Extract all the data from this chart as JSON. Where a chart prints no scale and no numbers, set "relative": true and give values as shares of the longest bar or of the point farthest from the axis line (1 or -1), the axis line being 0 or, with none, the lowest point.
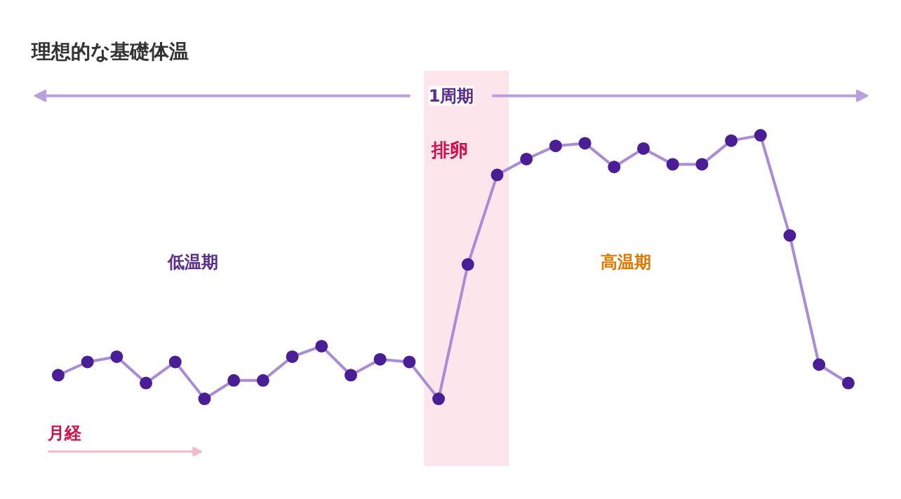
{
  "chart_data": {
    "type": "line",
    "title": "理想的な基礎体温",
    "relative": true,
    "marker": "circle",
    "line_style": "solid",
    "categories": [
      null,
      null,
      null,
      null,
      null,
      null,
      null,
      null,
      null,
      null,
      null,
      null,
      null,
      null,
      null,
      null,
      null,
      null,
      null,
      null,
      null,
      null,
      null,
      null,
      null,
      null,
      null,
      null
    ],
    "series": [
      {
        "color": "#a98bd6",
        "values": [
          0.09,
          0.14,
          0.16,
          0.06,
          0.14,
          0,
          0.07,
          0.07,
          0.16,
          0.2,
          0.09,
          0.15,
          0.14,
          0,
          0.51,
          0.85,
          0.91,
          0.96,
          0.97,
          0.88,
          0.95,
          0.89,
          0.89,
          0.98,
          1,
          0.62,
          0.13,
          0.06
        ]
      }
    ],
    "annotations": [
      "1周期",
      "低温期",
      "高温期",
      "月経",
      "排卵"
    ]
  }
}
